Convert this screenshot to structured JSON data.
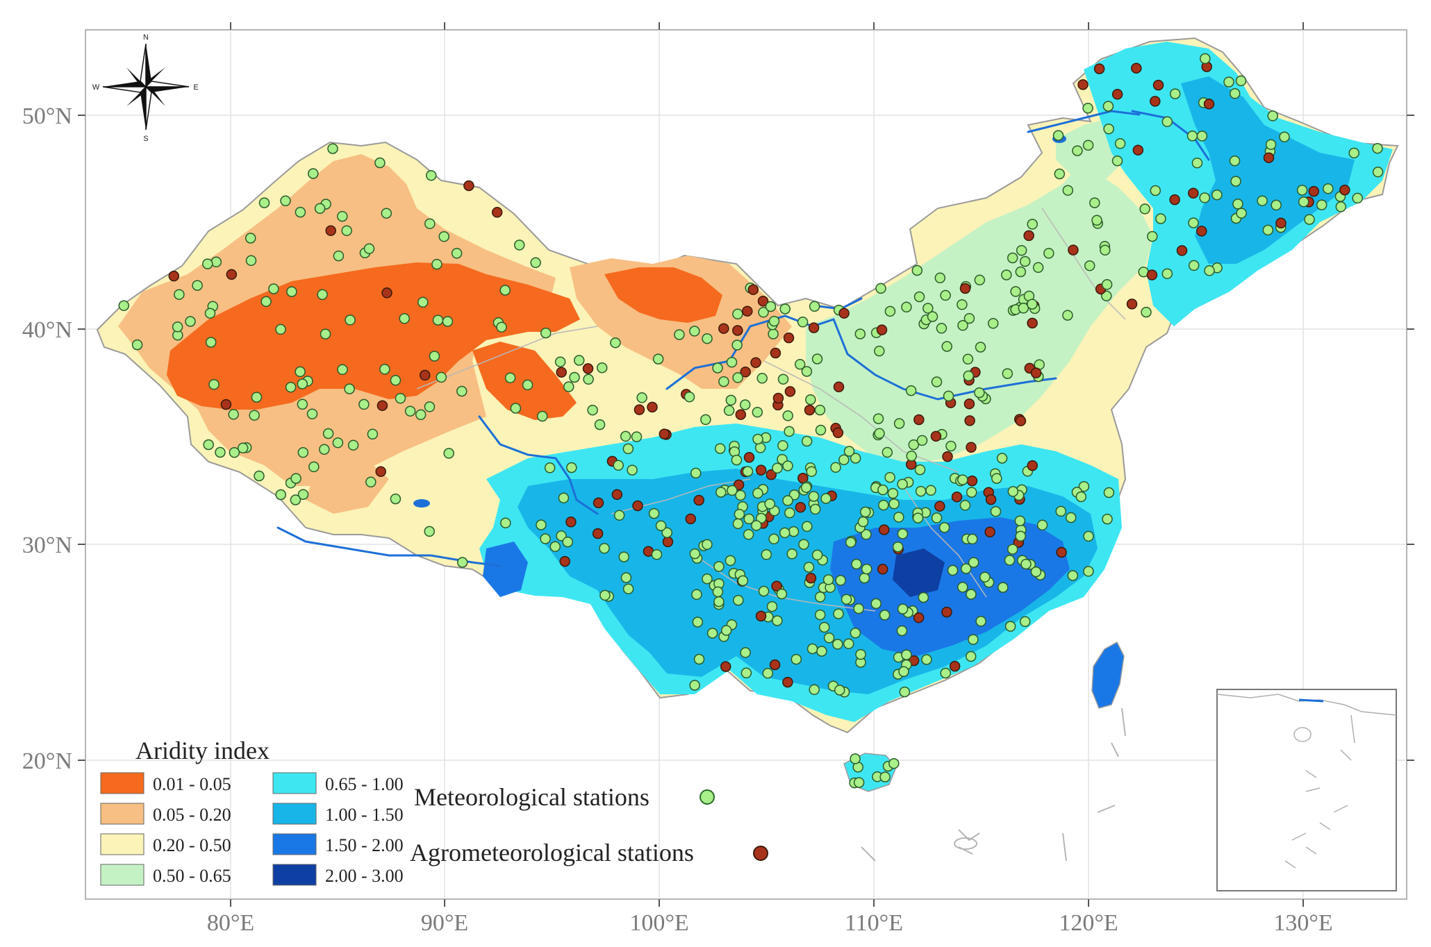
{
  "map": {
    "lon_ticks": [
      "80°E",
      "90°E",
      "100°E",
      "110°E",
      "120°E",
      "130°E"
    ],
    "lat_ticks": [
      "50°N",
      "40°N",
      "30°N",
      "20°N"
    ],
    "compass": {
      "n": "N",
      "s": "S",
      "e": "E",
      "w": "W"
    }
  },
  "legend": {
    "title": "Aridity index",
    "items": [
      {
        "label": "0.01 - 0.05",
        "color": "#f56a1f"
      },
      {
        "label": "0.05 - 0.20",
        "color": "#f7bf83"
      },
      {
        "label": "0.20 - 0.50",
        "color": "#fbf3b8"
      },
      {
        "label": "0.50 - 0.65",
        "color": "#c5f2c4"
      },
      {
        "label": "0.65 - 1.00",
        "color": "#3ee6f2"
      },
      {
        "label": "1.00 - 1.50",
        "color": "#18b6e8"
      },
      {
        "label": "1.50 - 2.00",
        "color": "#1a78e6"
      },
      {
        "label": "2.00 - 3.00",
        "color": "#0e3fa3"
      }
    ]
  },
  "stations": {
    "meteorological": {
      "label": "Meteorological stations",
      "color": "#a9ef8a"
    },
    "agrometeorological": {
      "label": "Agrometeorological stations",
      "color": "#a8331b"
    }
  }
}
